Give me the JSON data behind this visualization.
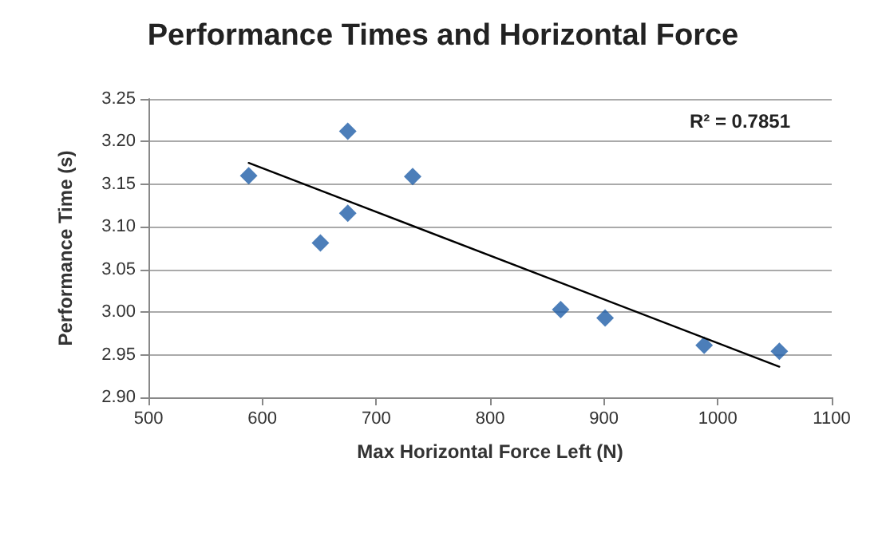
{
  "chart_data": {
    "type": "scatter",
    "title": "Performance Times and Horizontal Force",
    "xlabel": "Max Horizontal Force Left (N)",
    "ylabel": "Performance Time (s)",
    "annotations": [
      "R² = 0.7851"
    ],
    "series": [
      {
        "color": "#1f5ea8",
        "marker": "diamond",
        "x": [
          588,
          651,
          675,
          675,
          732,
          862,
          901,
          988,
          1054
        ],
        "values": [
          3.16,
          3.081,
          3.212,
          3.116,
          3.159,
          3.003,
          2.993,
          2.961,
          2.954
        ]
      },
      {
        "type": "line",
        "color": "#000000",
        "marker": "none",
        "x": [
          588,
          1054
        ],
        "values": [
          3.175,
          2.936
        ]
      }
    ],
    "xlim": [
      500,
      1100
    ],
    "xticks": [
      500,
      600,
      700,
      800,
      900,
      1000,
      1100
    ],
    "ylim": [
      2.9,
      3.25
    ],
    "yticks": [
      {
        "value": 2.9,
        "label": "2.90"
      },
      {
        "value": 2.95,
        "label": "2.95"
      },
      {
        "value": 3.0,
        "label": "3.00"
      },
      {
        "value": 3.05,
        "label": "3.05"
      },
      {
        "value": 3.1,
        "label": "3.10"
      },
      {
        "value": 3.15,
        "label": "3.15"
      },
      {
        "value": 3.2,
        "label": "3.20"
      },
      {
        "value": 3.25,
        "label": "3.25"
      }
    ],
    "grid": "y"
  }
}
